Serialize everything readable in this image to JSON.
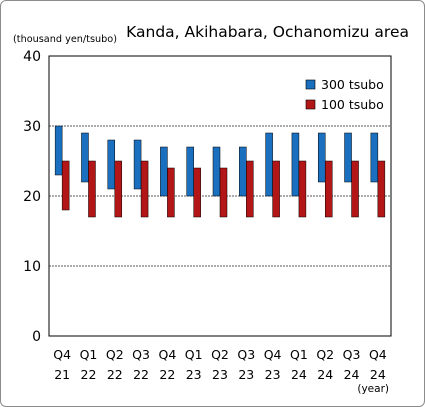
{
  "chart_data": {
    "type": "bar",
    "title": "Kanda, Akihabara, Ochanomizu area",
    "ylabel": "(thousand yen/tsubo)",
    "xlabel": "(year)",
    "ylim": [
      0,
      40
    ],
    "yticks": [
      0,
      10,
      20,
      30,
      40
    ],
    "grid": true,
    "legend_position": "top-right",
    "categories": [
      {
        "q": "Q4",
        "y": "21"
      },
      {
        "q": "Q1",
        "y": "22"
      },
      {
        "q": "Q2",
        "y": "22"
      },
      {
        "q": "Q3",
        "y": "22"
      },
      {
        "q": "Q4",
        "y": "22"
      },
      {
        "q": "Q1",
        "y": "23"
      },
      {
        "q": "Q2",
        "y": "23"
      },
      {
        "q": "Q3",
        "y": "23"
      },
      {
        "q": "Q4",
        "y": "23"
      },
      {
        "q": "Q1",
        "y": "24"
      },
      {
        "q": "Q2",
        "y": "24"
      },
      {
        "q": "Q3",
        "y": "24"
      },
      {
        "q": "Q4",
        "y": "24"
      }
    ],
    "series": [
      {
        "name": "300 tsubo",
        "color": "#1a6fbf",
        "low": [
          23,
          22,
          21,
          21,
          20,
          20,
          20,
          20,
          20,
          20,
          22,
          22,
          22
        ],
        "high": [
          30,
          29,
          28,
          28,
          27,
          27,
          27,
          27,
          29,
          29,
          29,
          29,
          29
        ]
      },
      {
        "name": "100 tsubo",
        "color": "#b31616",
        "low": [
          18,
          17,
          17,
          17,
          17,
          17,
          17,
          17,
          17,
          17,
          17,
          17,
          17
        ],
        "high": [
          25,
          25,
          25,
          25,
          24,
          24,
          24,
          25,
          25,
          25,
          25,
          25,
          25
        ]
      }
    ]
  }
}
